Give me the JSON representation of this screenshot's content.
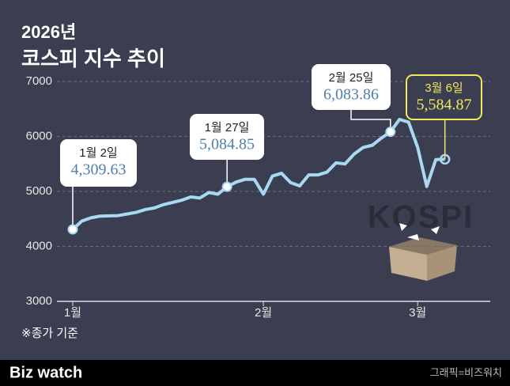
{
  "chart_data": {
    "type": "line",
    "title": "2026년",
    "subtitle": "코스피 지수 추이",
    "footnote": "※종가 기준",
    "illustration_text": "KOSPI",
    "brand": "Biz watch",
    "credit": "그래픽=비즈워치",
    "categories": [
      "1월",
      null,
      null,
      null,
      null,
      null,
      null,
      null,
      null,
      null,
      null,
      null,
      null,
      null,
      null,
      null,
      null,
      null,
      null,
      null,
      null,
      "2월",
      null,
      null,
      null,
      null,
      null,
      null,
      null,
      null,
      null,
      null,
      null,
      null,
      null,
      null,
      null,
      null,
      "3월",
      null,
      null,
      null
    ],
    "values": [
      4309.63,
      4460,
      4520,
      4550,
      4555,
      4560,
      4590,
      4620,
      4670,
      4700,
      4760,
      4800,
      4840,
      4900,
      4880,
      4980,
      4950,
      5084.85,
      5170,
      5220,
      5220,
      4950,
      5280,
      5330,
      5160,
      5100,
      5300,
      5300,
      5350,
      5520,
      5500,
      5680,
      5800,
      5840,
      5970,
      6083.86,
      6310,
      6260,
      5800,
      5090,
      5580,
      5584.87
    ],
    "date_labels": [
      "1월 2일",
      null,
      null,
      null,
      null,
      null,
      null,
      null,
      null,
      null,
      null,
      null,
      null,
      null,
      null,
      null,
      null,
      "1월 27일",
      null,
      null,
      null,
      null,
      null,
      null,
      null,
      null,
      null,
      null,
      null,
      null,
      null,
      null,
      null,
      null,
      null,
      "2월 25일",
      null,
      null,
      null,
      null,
      null,
      "3월 6일"
    ],
    "value_labels": [
      "4,309.63",
      null,
      null,
      null,
      null,
      null,
      null,
      null,
      null,
      null,
      null,
      null,
      null,
      null,
      null,
      null,
      null,
      "5,084.85",
      null,
      null,
      null,
      null,
      null,
      null,
      null,
      null,
      null,
      null,
      null,
      null,
      null,
      null,
      null,
      null,
      null,
      "6,083.86",
      null,
      null,
      null,
      null,
      null,
      "5,584.87"
    ],
    "color": "#a9d9f2",
    "highlight_color": "#f2e85c",
    "ylim": [
      3000,
      7000
    ],
    "yticks": [
      3000,
      4000,
      5000,
      6000,
      7000
    ],
    "grid": true
  }
}
